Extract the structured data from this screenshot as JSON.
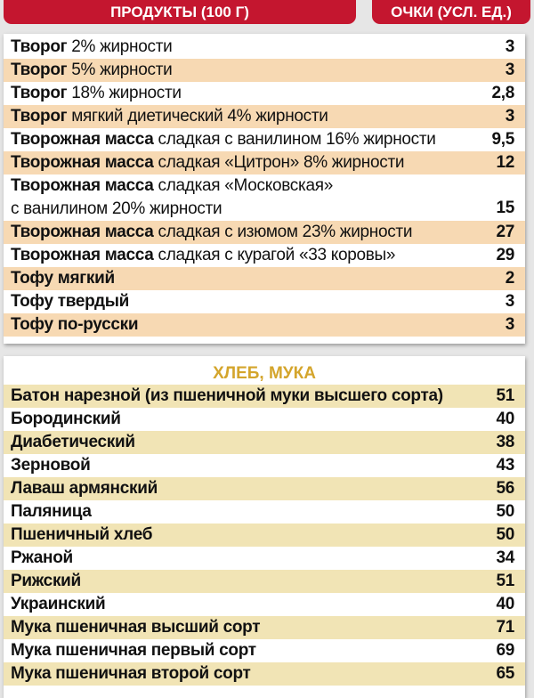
{
  "header": {
    "products": "ПРОДУКТЫ (100 Г)",
    "points": "ОЧКИ (УСЛ. ЕД.)"
  },
  "colors": {
    "header": "#c4162f",
    "row_highlight_1": "#f7d9b3",
    "row_highlight_2": "#f1e4b5",
    "section_title": "#d4a52c"
  },
  "section1": {
    "rows": [
      {
        "bold": "Творог",
        "rest": " 2% жирности",
        "value": "3"
      },
      {
        "bold": "Творог",
        "rest": " 5% жирности",
        "value": "3"
      },
      {
        "bold": "Творог",
        "rest": " 18% жирности",
        "value": "2,8"
      },
      {
        "bold": "Творог",
        "rest": " мягкий диетический 4% жирности",
        "value": "3"
      },
      {
        "bold": "Творожная масса",
        "rest": " сладкая с ванилином 16% жирности",
        "value": "9,5"
      },
      {
        "bold": "Творожная масса",
        "rest": " сладкая «Цитрон» 8% жирности",
        "value": "12"
      },
      {
        "bold": "Творожная масса",
        "rest": " сладкая «Московская»",
        "rest2": "с ванилином 20% жирности",
        "value": "15"
      },
      {
        "bold": "Творожная масса",
        "rest": " сладкая с изюмом 23% жирности",
        "value": "27"
      },
      {
        "bold": "Творожная масса",
        "rest": " сладкая с курагой «33 коровы»",
        "value": "29"
      },
      {
        "bold": "Тофу мягкий",
        "rest": "",
        "value": "2"
      },
      {
        "bold": "Тофу твердый",
        "rest": "",
        "value": "3"
      },
      {
        "bold": "Тофу по-русски",
        "rest": "",
        "value": "3"
      }
    ]
  },
  "section2": {
    "title": "ХЛЕБ, МУКА",
    "rows": [
      {
        "name": "Батон нарезной (из пшеничной муки высшего сорта)",
        "value": "51"
      },
      {
        "name": "Бородинский",
        "value": "40"
      },
      {
        "name": "Диабетический",
        "value": "38"
      },
      {
        "name": "Зерновой",
        "value": "43"
      },
      {
        "name": "Лаваш армянский",
        "value": "56"
      },
      {
        "name": "Паляница",
        "value": "50"
      },
      {
        "name": "Пшеничный хлеб",
        "value": "50"
      },
      {
        "name": "Ржаной",
        "value": "34"
      },
      {
        "name": "Рижский",
        "value": "51"
      },
      {
        "name": "Украинский",
        "value": "40"
      },
      {
        "name": "Мука пшеничная высший сорт",
        "value": "71"
      },
      {
        "name": "Мука пшеничная первый сорт",
        "value": "69"
      },
      {
        "name": "Мука пшеничная второй сорт",
        "value": "65"
      }
    ]
  }
}
